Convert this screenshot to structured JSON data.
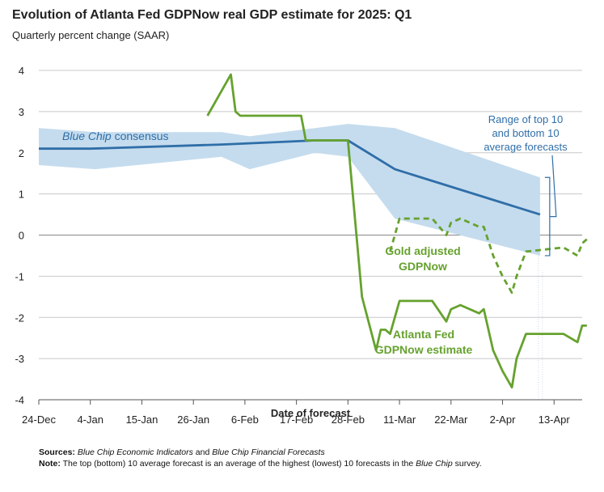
{
  "title": "Evolution of Atlanta Fed GDPNow real GDP estimate for 2025: Q1",
  "subtitle": "Quarterly percent change (SAAR)",
  "chart_data": {
    "type": "line",
    "xlabel": "Date of forecast",
    "ylabel": "",
    "ylim": [
      -4,
      4
    ],
    "xlim": [
      "2024-12-24",
      "2025-04-19"
    ],
    "yticks": [
      "4",
      "3",
      "2",
      "1",
      "0",
      "-1",
      "-2",
      "-3",
      "-4"
    ],
    "xticks": [
      "24-Dec",
      "4-Jan",
      "15-Jan",
      "26-Jan",
      "6-Feb",
      "17-Feb",
      "28-Feb",
      "11-Mar",
      "22-Mar",
      "2-Apr",
      "13-Apr"
    ],
    "grid": "horizontal",
    "colors": {
      "band": "#c5dcee",
      "blue_chip": "#2f6ea8",
      "gdpnow": "#66a22e",
      "gold_adjusted": "#66a22e",
      "annotation": "#2f6ea8"
    },
    "series": [
      {
        "name": "Blue Chip consensus",
        "style": "line",
        "points": [
          [
            "2024-12-24",
            2.1
          ],
          [
            "2025-01-04",
            2.1
          ],
          [
            "2025-02-01",
            2.2
          ],
          [
            "2025-02-21",
            2.3
          ],
          [
            "2025-02-28",
            2.3
          ],
          [
            "2025-03-10",
            1.6
          ],
          [
            "2025-04-10",
            0.5
          ]
        ]
      },
      {
        "name": "Atlanta Fed GDPNow estimate",
        "style": "line",
        "points": [
          [
            "2025-01-29",
            2.9
          ],
          [
            "2025-02-03",
            3.9
          ],
          [
            "2025-02-04",
            3.0
          ],
          [
            "2025-02-05",
            2.9
          ],
          [
            "2025-02-18",
            2.9
          ],
          [
            "2025-02-19",
            2.3
          ],
          [
            "2025-02-27",
            2.3
          ],
          [
            "2025-02-28",
            2.3
          ],
          [
            "2025-03-03",
            -1.5
          ],
          [
            "2025-03-06",
            -2.8
          ],
          [
            "2025-03-07",
            -2.3
          ],
          [
            "2025-03-08",
            -2.3
          ],
          [
            "2025-03-09",
            -2.4
          ],
          [
            "2025-03-11",
            -1.6
          ],
          [
            "2025-03-18",
            -1.6
          ],
          [
            "2025-03-21",
            -2.1
          ],
          [
            "2025-03-22",
            -1.8
          ],
          [
            "2025-03-24",
            -1.7
          ],
          [
            "2025-03-28",
            -1.9
          ],
          [
            "2025-03-29",
            -1.8
          ],
          [
            "2025-03-31",
            -2.8
          ],
          [
            "2025-04-02",
            -3.3
          ],
          [
            "2025-04-04",
            -3.7
          ],
          [
            "2025-04-05",
            -3.0
          ],
          [
            "2025-04-07",
            -2.4
          ],
          [
            "2025-04-15",
            -2.4
          ],
          [
            "2025-04-18",
            -2.6
          ],
          [
            "2025-04-19",
            -2.2
          ],
          [
            "2025-04-20",
            -2.2
          ]
        ]
      },
      {
        "name": "Gold adjusted GDPNow",
        "style": "dashed",
        "points": [
          [
            "2025-03-09",
            -0.4
          ],
          [
            "2025-03-11",
            0.4
          ],
          [
            "2025-03-18",
            0.4
          ],
          [
            "2025-03-21",
            0.0
          ],
          [
            "2025-03-22",
            0.3
          ],
          [
            "2025-03-24",
            0.4
          ],
          [
            "2025-03-28",
            0.2
          ],
          [
            "2025-03-29",
            0.2
          ],
          [
            "2025-03-31",
            -0.5
          ],
          [
            "2025-04-02",
            -1.0
          ],
          [
            "2025-04-04",
            -1.4
          ],
          [
            "2025-04-05",
            -1.0
          ],
          [
            "2025-04-07",
            -0.4
          ],
          [
            "2025-04-15",
            -0.3
          ],
          [
            "2025-04-18",
            -0.5
          ],
          [
            "2025-04-19",
            -0.2
          ],
          [
            "2025-04-20",
            -0.1
          ]
        ]
      }
    ],
    "band": {
      "name": "Range of top 10 and bottom 10 average forecasts",
      "points": [
        [
          "2024-12-24",
          2.6,
          1.7
        ],
        [
          "2025-01-05",
          2.5,
          1.6
        ],
        [
          "2025-02-01",
          2.5,
          1.9
        ],
        [
          "2025-02-07",
          2.4,
          1.6
        ],
        [
          "2025-02-21",
          2.6,
          2.0
        ],
        [
          "2025-02-28",
          2.7,
          1.9
        ],
        [
          "2025-03-10",
          2.6,
          0.4
        ],
        [
          "2025-04-10",
          1.4,
          -0.5
        ]
      ]
    },
    "annotations": {
      "blue_chip_label": "Blue Chip",
      "blue_chip_label_rest": " consensus",
      "range_label": [
        "Range of top 10",
        "and bottom 10",
        "average forecasts"
      ],
      "gold_label": [
        "Gold adjusted",
        "GDPNow"
      ],
      "gdpnow_label": [
        "Atlanta Fed",
        "GDPNow estimate"
      ]
    }
  },
  "footer": {
    "sources_label": "Sources:",
    "sources_text": "Blue Chip Economic Indicators and Blue Chip Financial Forecasts",
    "sources_and": " and ",
    "sources_text_a": "Blue Chip Economic Indicators",
    "sources_text_b": "Blue Chip Financial Forecasts",
    "note_label": "Note:",
    "note_text_a": " The top (bottom) 10 average forecast is an average of the highest (lowest) 10 forecasts in the ",
    "note_italic": "Blue Chip",
    "note_text_b": " survey."
  }
}
